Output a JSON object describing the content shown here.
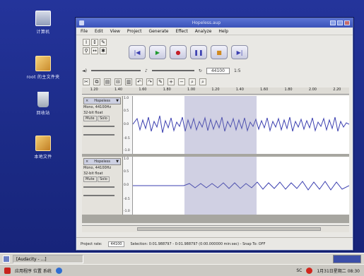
{
  "desktop": {
    "icons": [
      {
        "label": "计算机",
        "icon": "computer-icon"
      },
      {
        "label": "root 的主文件夹",
        "icon": "home-folder-icon"
      },
      {
        "label": "回收站",
        "icon": "trash-icon"
      },
      {
        "label": "本地文件",
        "icon": "folder-icon"
      }
    ]
  },
  "window": {
    "title": "Hopeless.aup",
    "menu": [
      "File",
      "Edit",
      "View",
      "Project",
      "Generate",
      "Effect",
      "Analyze",
      "Help"
    ]
  },
  "transport": [
    "|◀",
    "▶",
    "●",
    "❚❚",
    "■",
    "▶|"
  ],
  "meters": {
    "rate": "44100",
    "zoom_label": "1:5"
  },
  "ruler": [
    "1.20",
    "1.40",
    "1.60",
    "1.80",
    "1.00",
    "1.20",
    "1.40",
    "1.60",
    "1.80",
    "2.00",
    "2.20"
  ],
  "tracks": [
    {
      "name": "Hopeless",
      "info1": "Mono, 44100Hz",
      "info2": "32-bit float",
      "mute": "Mute",
      "solo": "Solo"
    },
    {
      "name": "Hopeless",
      "info1": "Mono, 44100Hz",
      "info2": "32-bit float",
      "mute": "Mute",
      "solo": "Solo"
    }
  ],
  "scale": [
    "1.0",
    "0.5",
    "0.0",
    "-0.5",
    "-1.0"
  ],
  "status": {
    "project_rate_label": "Project rate:",
    "project_rate": "44100",
    "selection": "Selection: 0:01.988797 - 0:01.988797 (0:00.000000 min:sec) - Snap To: OFF"
  },
  "taskbar": {
    "task": "[Audacity - ...]"
  },
  "tray": {
    "apps": "应用程序  位置  系统",
    "ime": "SC",
    "clock": "1月31日星期二 08:30"
  }
}
